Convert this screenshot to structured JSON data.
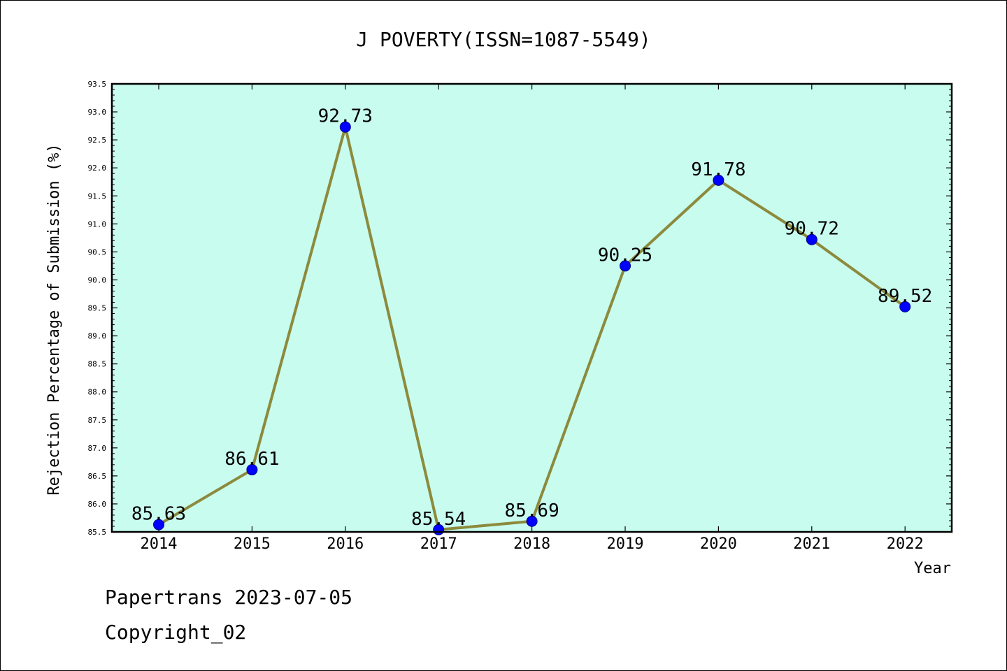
{
  "chart_data": {
    "type": "line",
    "title": "J POVERTY(ISSN=1087-5549)",
    "xlabel": "Year",
    "ylabel": "Rejection Percentage of Submission (%)",
    "categories": [
      "2014",
      "2015",
      "2016",
      "2017",
      "2018",
      "2019",
      "2020",
      "2021",
      "2022"
    ],
    "series": [
      {
        "values": [
          85.63,
          86.61,
          92.73,
          85.54,
          85.69,
          90.25,
          91.78,
          90.72,
          89.52
        ]
      }
    ],
    "data_labels": [
      "85.63",
      "86.61",
      "92.73",
      "85.54",
      "85.69",
      "90.25",
      "91.78",
      "90.72",
      "89.52"
    ],
    "ylim": [
      85.5,
      93.5
    ],
    "yticks": [
      "85.5",
      "86.0",
      "86.5",
      "87.0",
      "87.5",
      "88.0",
      "88.5",
      "89.0",
      "89.5",
      "90.0",
      "90.5",
      "91.0",
      "91.5",
      "92.0",
      "92.5",
      "93.0",
      "93.5"
    ],
    "grid": false,
    "colors": {
      "plot_background": "#c8fcee",
      "line": "#8c8a3c",
      "marker": "#0000ff"
    }
  },
  "footer": {
    "line1": "Papertrans 2023-07-05",
    "line2": "Copyright_02"
  }
}
